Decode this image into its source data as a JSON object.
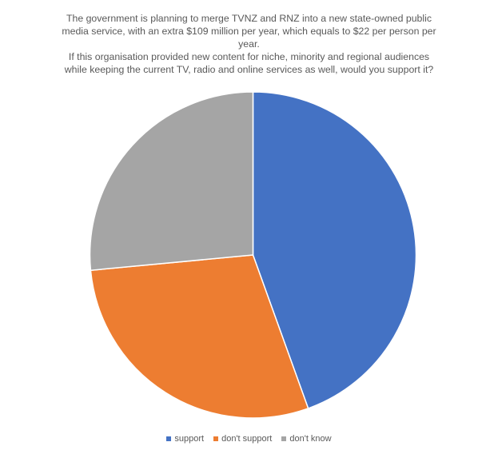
{
  "chart_data": {
    "type": "pie",
    "title_lines": [
      "The government is planning to merge TVNZ and RNZ into a new state-owned public",
      "media service, with an extra $109 million per year, which equals to $22 per person per",
      "year.",
      "If this organisation provided new content for niche, minority and regional audiences",
      "while keeping the current TV, radio and online services as well, would you support it?"
    ],
    "categories": [
      "support",
      "don't support",
      "don't know"
    ],
    "values": [
      44.5,
      29.0,
      26.5
    ],
    "colors": [
      "#4472C4",
      "#ED7D31",
      "#A5A5A5"
    ],
    "start_angle_deg": 0,
    "direction": "clockwise",
    "legend_position": "bottom"
  }
}
